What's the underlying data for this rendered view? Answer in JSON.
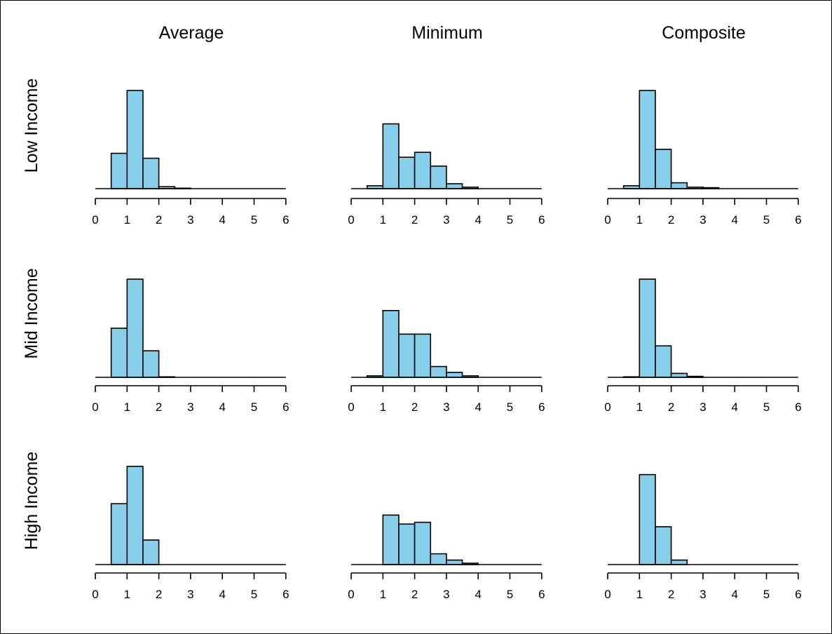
{
  "chart_data": {
    "type": "bar",
    "layout": "3x3 small multiples of histograms",
    "column_titles": [
      "Average",
      "Minimum",
      "Composite"
    ],
    "row_titles": [
      "Low Income",
      "Mid Income",
      "High Income"
    ],
    "bar_color": "#87CEEB",
    "bar_outline": "#000000",
    "xlim": [
      0,
      6
    ],
    "xticks": [
      0,
      1,
      2,
      3,
      4,
      5,
      6
    ],
    "bin_width": 0.5,
    "y_axis_shown": false,
    "grid": false,
    "panels": [
      {
        "row": "Low Income",
        "col": "Average",
        "bin_starts": [
          0.5,
          1.0,
          1.5,
          2.0,
          2.5
        ],
        "values": [
          0.36,
          1.0,
          0.31,
          0.02,
          0.005
        ],
        "ylim": [
          0,
          1.1
        ]
      },
      {
        "row": "Low Income",
        "col": "Minimum",
        "bin_starts": [
          0.5,
          1.0,
          1.5,
          2.0,
          2.5,
          3.0,
          3.5
        ],
        "values": [
          0.03,
          0.66,
          0.32,
          0.37,
          0.23,
          0.05,
          0.015
        ],
        "ylim": [
          0,
          1.1
        ]
      },
      {
        "row": "Low Income",
        "col": "Composite",
        "bin_starts": [
          0.5,
          1.0,
          1.5,
          2.0,
          2.5,
          3.0
        ],
        "values": [
          0.03,
          1.0,
          0.4,
          0.06,
          0.015,
          0.01
        ],
        "ylim": [
          0,
          1.1
        ]
      },
      {
        "row": "Mid Income",
        "col": "Average",
        "bin_starts": [
          0.5,
          1.0,
          1.5,
          2.0
        ],
        "values": [
          0.5,
          1.0,
          0.27,
          0.005
        ],
        "ylim": [
          0,
          1.1
        ]
      },
      {
        "row": "Mid Income",
        "col": "Minimum",
        "bin_starts": [
          0.5,
          1.0,
          1.5,
          2.0,
          2.5,
          3.0,
          3.5
        ],
        "values": [
          0.015,
          0.68,
          0.44,
          0.44,
          0.11,
          0.05,
          0.015
        ],
        "ylim": [
          0,
          1.1
        ]
      },
      {
        "row": "Mid Income",
        "col": "Composite",
        "bin_starts": [
          0.5,
          1.0,
          1.5,
          2.0,
          2.5
        ],
        "values": [
          0.005,
          1.0,
          0.32,
          0.04,
          0.01
        ],
        "ylim": [
          0,
          1.1
        ]
      },
      {
        "row": "High Income",
        "col": "Average",
        "bin_starts": [
          0.5,
          1.0,
          1.5
        ],
        "values": [
          0.62,
          1.0,
          0.25
        ],
        "ylim": [
          0,
          1.1
        ]
      },
      {
        "row": "High Income",
        "col": "Minimum",
        "bin_starts": [
          1.0,
          1.5,
          2.0,
          2.5,
          3.0,
          3.5
        ],
        "values": [
          0.55,
          0.45,
          0.47,
          0.12,
          0.05,
          0.015
        ],
        "ylim": [
          0,
          1.2
        ]
      },
      {
        "row": "High Income",
        "col": "Composite",
        "bin_starts": [
          1.0,
          1.5,
          2.0
        ],
        "values": [
          1.0,
          0.42,
          0.05
        ],
        "ylim": [
          0,
          1.2
        ]
      }
    ]
  }
}
